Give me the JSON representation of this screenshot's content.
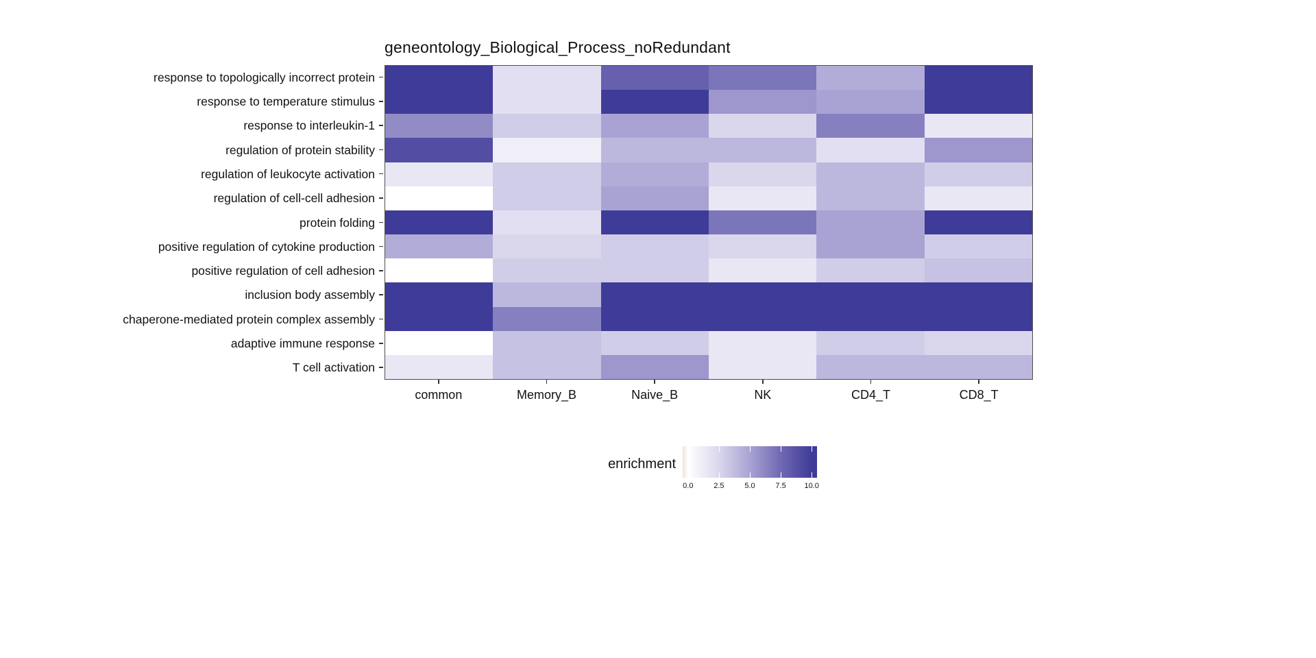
{
  "chart_data": {
    "type": "heatmap",
    "title": "geneontology_Biological_Process_noRedundant",
    "legend_title": "enrichment",
    "legend_ticks": [
      {
        "value": 0,
        "label": "0.0"
      },
      {
        "value": 2.5,
        "label": "2.5"
      },
      {
        "value": 5,
        "label": "5.0"
      },
      {
        "value": 7.5,
        "label": "7.5"
      },
      {
        "value": 10,
        "label": "10.0"
      }
    ],
    "value_range": [
      0,
      10
    ],
    "legend_position": "bottom",
    "grid": false,
    "colorscale": {
      "low_overflow": "#F3E0DA",
      "stops": [
        [
          0,
          "#FFFFFF"
        ],
        [
          2.5,
          "#DAD7ED"
        ],
        [
          5,
          "#A8A3D3"
        ],
        [
          7.5,
          "#7069B3"
        ],
        [
          10,
          "#3F3B98"
        ]
      ]
    },
    "colors": {
      "background": "#FFFFFF",
      "panel_border": "#4D4D4D",
      "max_color": "#3F3B98"
    },
    "columns": [
      "common",
      "Memory_B",
      "Naive_B",
      "NK",
      "CD4_T",
      "CD8_T"
    ],
    "rows": [
      "response to topologically incorrect protein",
      "response to temperature stimulus",
      "response to interleukin-1",
      "regulation of protein stability",
      "regulation of leukocyte activation",
      "regulation of cell-cell adhesion",
      "protein folding",
      "positive regulation of cytokine production",
      "positive regulation of cell adhesion",
      "inclusion body assembly",
      "chaperone-mediated protein complex assembly",
      "adaptive immune response",
      "T cell activation"
    ],
    "values": [
      [
        10,
        2,
        8,
        7,
        4.5,
        10
      ],
      [
        10,
        2,
        10,
        5.5,
        5,
        10
      ],
      [
        6,
        3,
        5,
        2.5,
        6.5,
        1.5
      ],
      [
        9,
        1,
        4,
        4,
        2,
        5.5
      ],
      [
        1.5,
        3,
        4.5,
        2.5,
        4,
        3
      ],
      [
        null,
        3,
        5,
        1.5,
        4,
        1.5
      ],
      [
        10,
        2,
        10,
        7,
        5,
        10
      ],
      [
        4.5,
        2.5,
        3,
        2.5,
        5,
        3
      ],
      [
        null,
        3,
        3,
        1.5,
        3,
        3.5
      ],
      [
        10,
        4,
        10,
        10,
        10,
        10
      ],
      [
        10,
        6.5,
        10,
        10,
        10,
        10
      ],
      [
        null,
        3.5,
        3,
        1.5,
        3,
        2.5
      ],
      [
        1.5,
        3.5,
        5.5,
        1.5,
        4,
        4
      ]
    ]
  }
}
